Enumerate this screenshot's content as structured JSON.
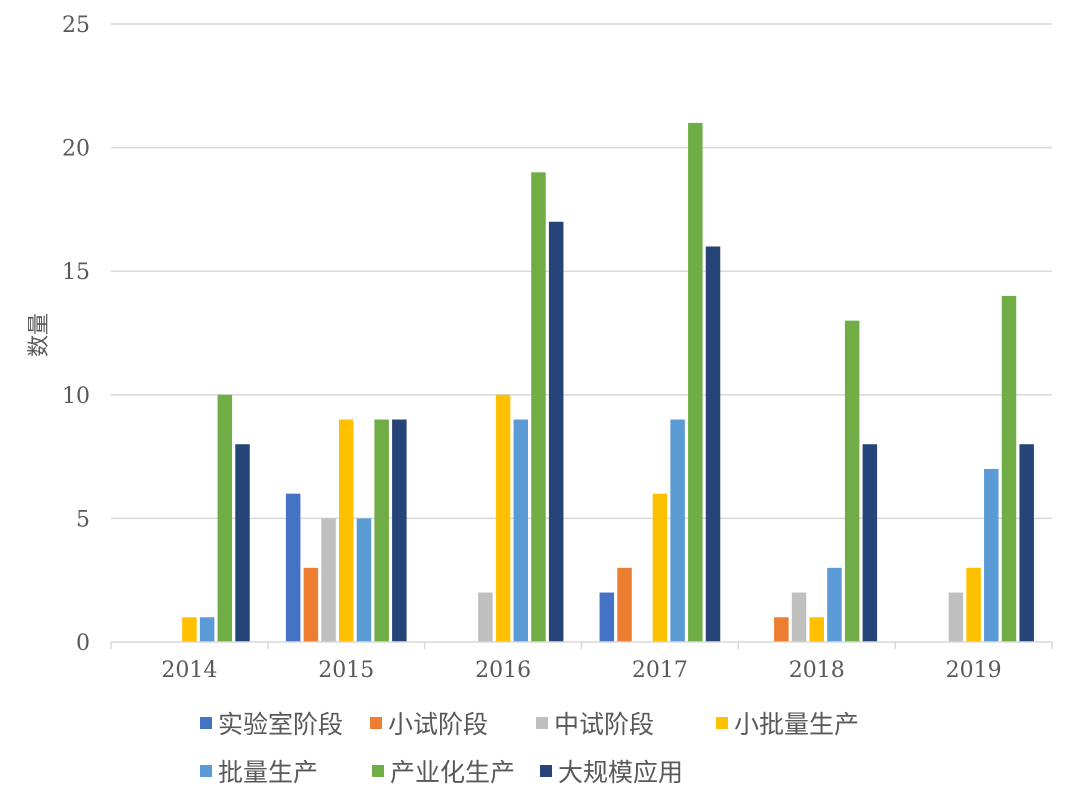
{
  "chart_data": {
    "type": "bar",
    "title": "",
    "xlabel": "",
    "ylabel": "数量",
    "ylim": [
      0,
      25
    ],
    "yticks": [
      0,
      5,
      10,
      15,
      20,
      25
    ],
    "grid": true,
    "legend_position": "bottom",
    "categories": [
      "2014",
      "2015",
      "2016",
      "2017",
      "2018",
      "2019"
    ],
    "series": [
      {
        "name": "实验室阶段",
        "color": "#4472C4",
        "values": [
          0,
          6,
          0,
          2,
          0,
          0
        ]
      },
      {
        "name": "小试阶段",
        "color": "#ED7D31",
        "values": [
          0,
          3,
          0,
          3,
          1,
          0
        ]
      },
      {
        "name": "中试阶段",
        "color": "#BFBFBF",
        "values": [
          0,
          5,
          2,
          0,
          2,
          2
        ]
      },
      {
        "name": "小批量生产",
        "color": "#FFC000",
        "values": [
          1,
          9,
          10,
          6,
          1,
          3
        ]
      },
      {
        "name": "批量生产",
        "color": "#5B9BD5",
        "values": [
          1,
          5,
          9,
          9,
          3,
          7
        ]
      },
      {
        "name": "产业化生产",
        "color": "#70AD47",
        "values": [
          10,
          9,
          19,
          21,
          13,
          14
        ]
      },
      {
        "name": "大规模应用",
        "color": "#264478",
        "values": [
          8,
          9,
          17,
          16,
          8,
          8
        ]
      }
    ]
  }
}
